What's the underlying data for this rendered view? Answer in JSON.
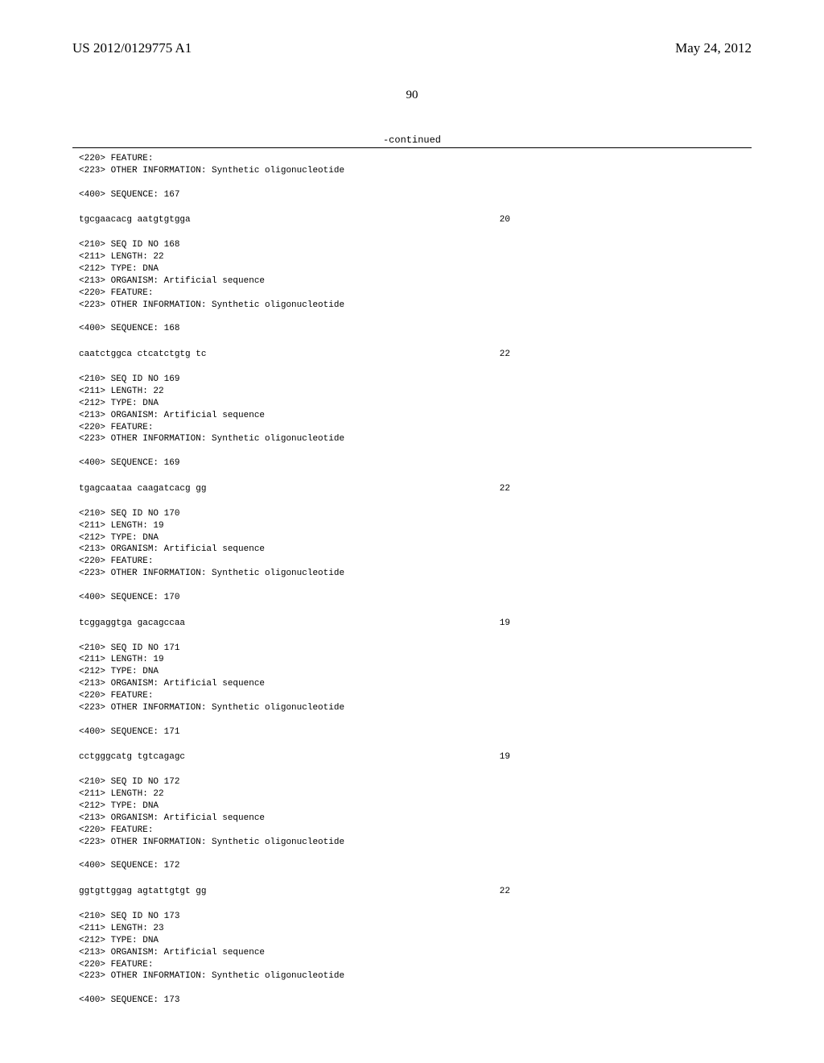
{
  "header": {
    "pub_number": "US 2012/0129775 A1",
    "pub_date": "May 24, 2012"
  },
  "page_number": "90",
  "continued_label": "-continued",
  "entries": [
    {
      "pre_lines": [
        "<220> FEATURE:",
        "<223> OTHER INFORMATION: Synthetic oligonucleotide",
        "",
        "<400> SEQUENCE: 167"
      ],
      "sequence": "tgcgaacacg aatgtgtgga",
      "seq_len": "20"
    },
    {
      "pre_lines": [
        "<210> SEQ ID NO 168",
        "<211> LENGTH: 22",
        "<212> TYPE: DNA",
        "<213> ORGANISM: Artificial sequence",
        "<220> FEATURE:",
        "<223> OTHER INFORMATION: Synthetic oligonucleotide",
        "",
        "<400> SEQUENCE: 168"
      ],
      "sequence": "caatctggca ctcatctgtg tc",
      "seq_len": "22"
    },
    {
      "pre_lines": [
        "<210> SEQ ID NO 169",
        "<211> LENGTH: 22",
        "<212> TYPE: DNA",
        "<213> ORGANISM: Artificial sequence",
        "<220> FEATURE:",
        "<223> OTHER INFORMATION: Synthetic oligonucleotide",
        "",
        "<400> SEQUENCE: 169"
      ],
      "sequence": "tgagcaataa caagatcacg gg",
      "seq_len": "22"
    },
    {
      "pre_lines": [
        "<210> SEQ ID NO 170",
        "<211> LENGTH: 19",
        "<212> TYPE: DNA",
        "<213> ORGANISM: Artificial sequence",
        "<220> FEATURE:",
        "<223> OTHER INFORMATION: Synthetic oligonucleotide",
        "",
        "<400> SEQUENCE: 170"
      ],
      "sequence": "tcggaggtga gacagccaa",
      "seq_len": "19"
    },
    {
      "pre_lines": [
        "<210> SEQ ID NO 171",
        "<211> LENGTH: 19",
        "<212> TYPE: DNA",
        "<213> ORGANISM: Artificial sequence",
        "<220> FEATURE:",
        "<223> OTHER INFORMATION: Synthetic oligonucleotide",
        "",
        "<400> SEQUENCE: 171"
      ],
      "sequence": "cctgggcatg tgtcagagc",
      "seq_len": "19"
    },
    {
      "pre_lines": [
        "<210> SEQ ID NO 172",
        "<211> LENGTH: 22",
        "<212> TYPE: DNA",
        "<213> ORGANISM: Artificial sequence",
        "<220> FEATURE:",
        "<223> OTHER INFORMATION: Synthetic oligonucleotide",
        "",
        "<400> SEQUENCE: 172"
      ],
      "sequence": "ggtgttggag agtattgtgt gg",
      "seq_len": "22"
    },
    {
      "pre_lines": [
        "<210> SEQ ID NO 173",
        "<211> LENGTH: 23",
        "<212> TYPE: DNA",
        "<213> ORGANISM: Artificial sequence",
        "<220> FEATURE:",
        "<223> OTHER INFORMATION: Synthetic oligonucleotide",
        "",
        "<400> SEQUENCE: 173"
      ],
      "sequence": "",
      "seq_len": ""
    }
  ]
}
